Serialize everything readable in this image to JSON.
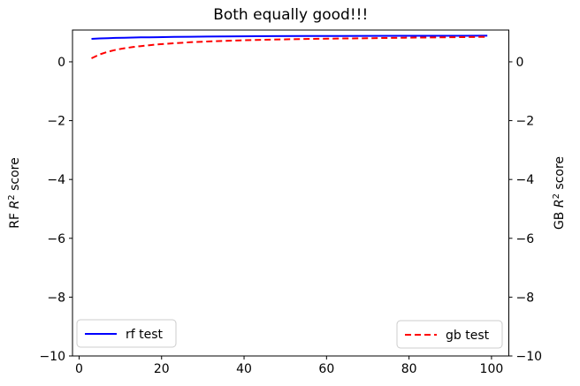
{
  "chart_data": {
    "type": "line",
    "title": "Both equally good!!!",
    "xlabel": "",
    "ylabel_left": "RF R² score",
    "ylabel_right": "GB R² score",
    "ylabel_left_parts": {
      "pre": "RF ",
      "var": "R",
      "sup": "2",
      "post": " score"
    },
    "ylabel_right_parts": {
      "pre": "GB ",
      "var": "R",
      "sup": "2",
      "post": " score"
    },
    "xlim": [
      -1.6,
      104.2
    ],
    "ylim": [
      -10,
      1.08
    ],
    "xticks": [
      0,
      20,
      40,
      60,
      80,
      100
    ],
    "yticks_left": [
      0,
      -2,
      -4,
      -6,
      -8,
      -10
    ],
    "yticks_right": [
      0,
      -2,
      -4,
      -6,
      -8,
      -10
    ],
    "grid": false,
    "colors": {
      "rf": "#0000ff",
      "gb": "#ff0000",
      "spine": "#000000",
      "legend_border": "#cccccc"
    },
    "series": [
      {
        "name": "rf test",
        "axis": "left",
        "color": "#0000ff",
        "style": "solid",
        "x": [
          3,
          5,
          7,
          9,
          11,
          13,
          15,
          17,
          19,
          23,
          27,
          31,
          35,
          39,
          43,
          47,
          55,
          63,
          71,
          79,
          87,
          93,
          99
        ],
        "y": [
          0.78,
          0.795,
          0.805,
          0.813,
          0.82,
          0.825,
          0.83,
          0.834,
          0.838,
          0.846,
          0.852,
          0.857,
          0.862,
          0.866,
          0.869,
          0.872,
          0.876,
          0.879,
          0.882,
          0.884,
          0.885,
          0.886,
          0.887
        ]
      },
      {
        "name": "gb test",
        "axis": "right",
        "color": "#ff0000",
        "style": "dashed",
        "x": [
          3,
          5,
          7,
          9,
          11,
          13,
          15,
          17,
          19,
          23,
          27,
          31,
          35,
          39,
          43,
          47,
          55,
          63,
          71,
          79,
          87,
          93,
          99
        ],
        "y": [
          0.12,
          0.25,
          0.34,
          0.41,
          0.46,
          0.5,
          0.535,
          0.565,
          0.59,
          0.63,
          0.665,
          0.69,
          0.71,
          0.73,
          0.745,
          0.757,
          0.777,
          0.792,
          0.805,
          0.818,
          0.83,
          0.84,
          0.85
        ]
      }
    ],
    "legends": [
      {
        "label": "rf test",
        "series": 0,
        "position": "lower-left"
      },
      {
        "label": "gb test",
        "series": 1,
        "position": "lower-right"
      }
    ]
  }
}
